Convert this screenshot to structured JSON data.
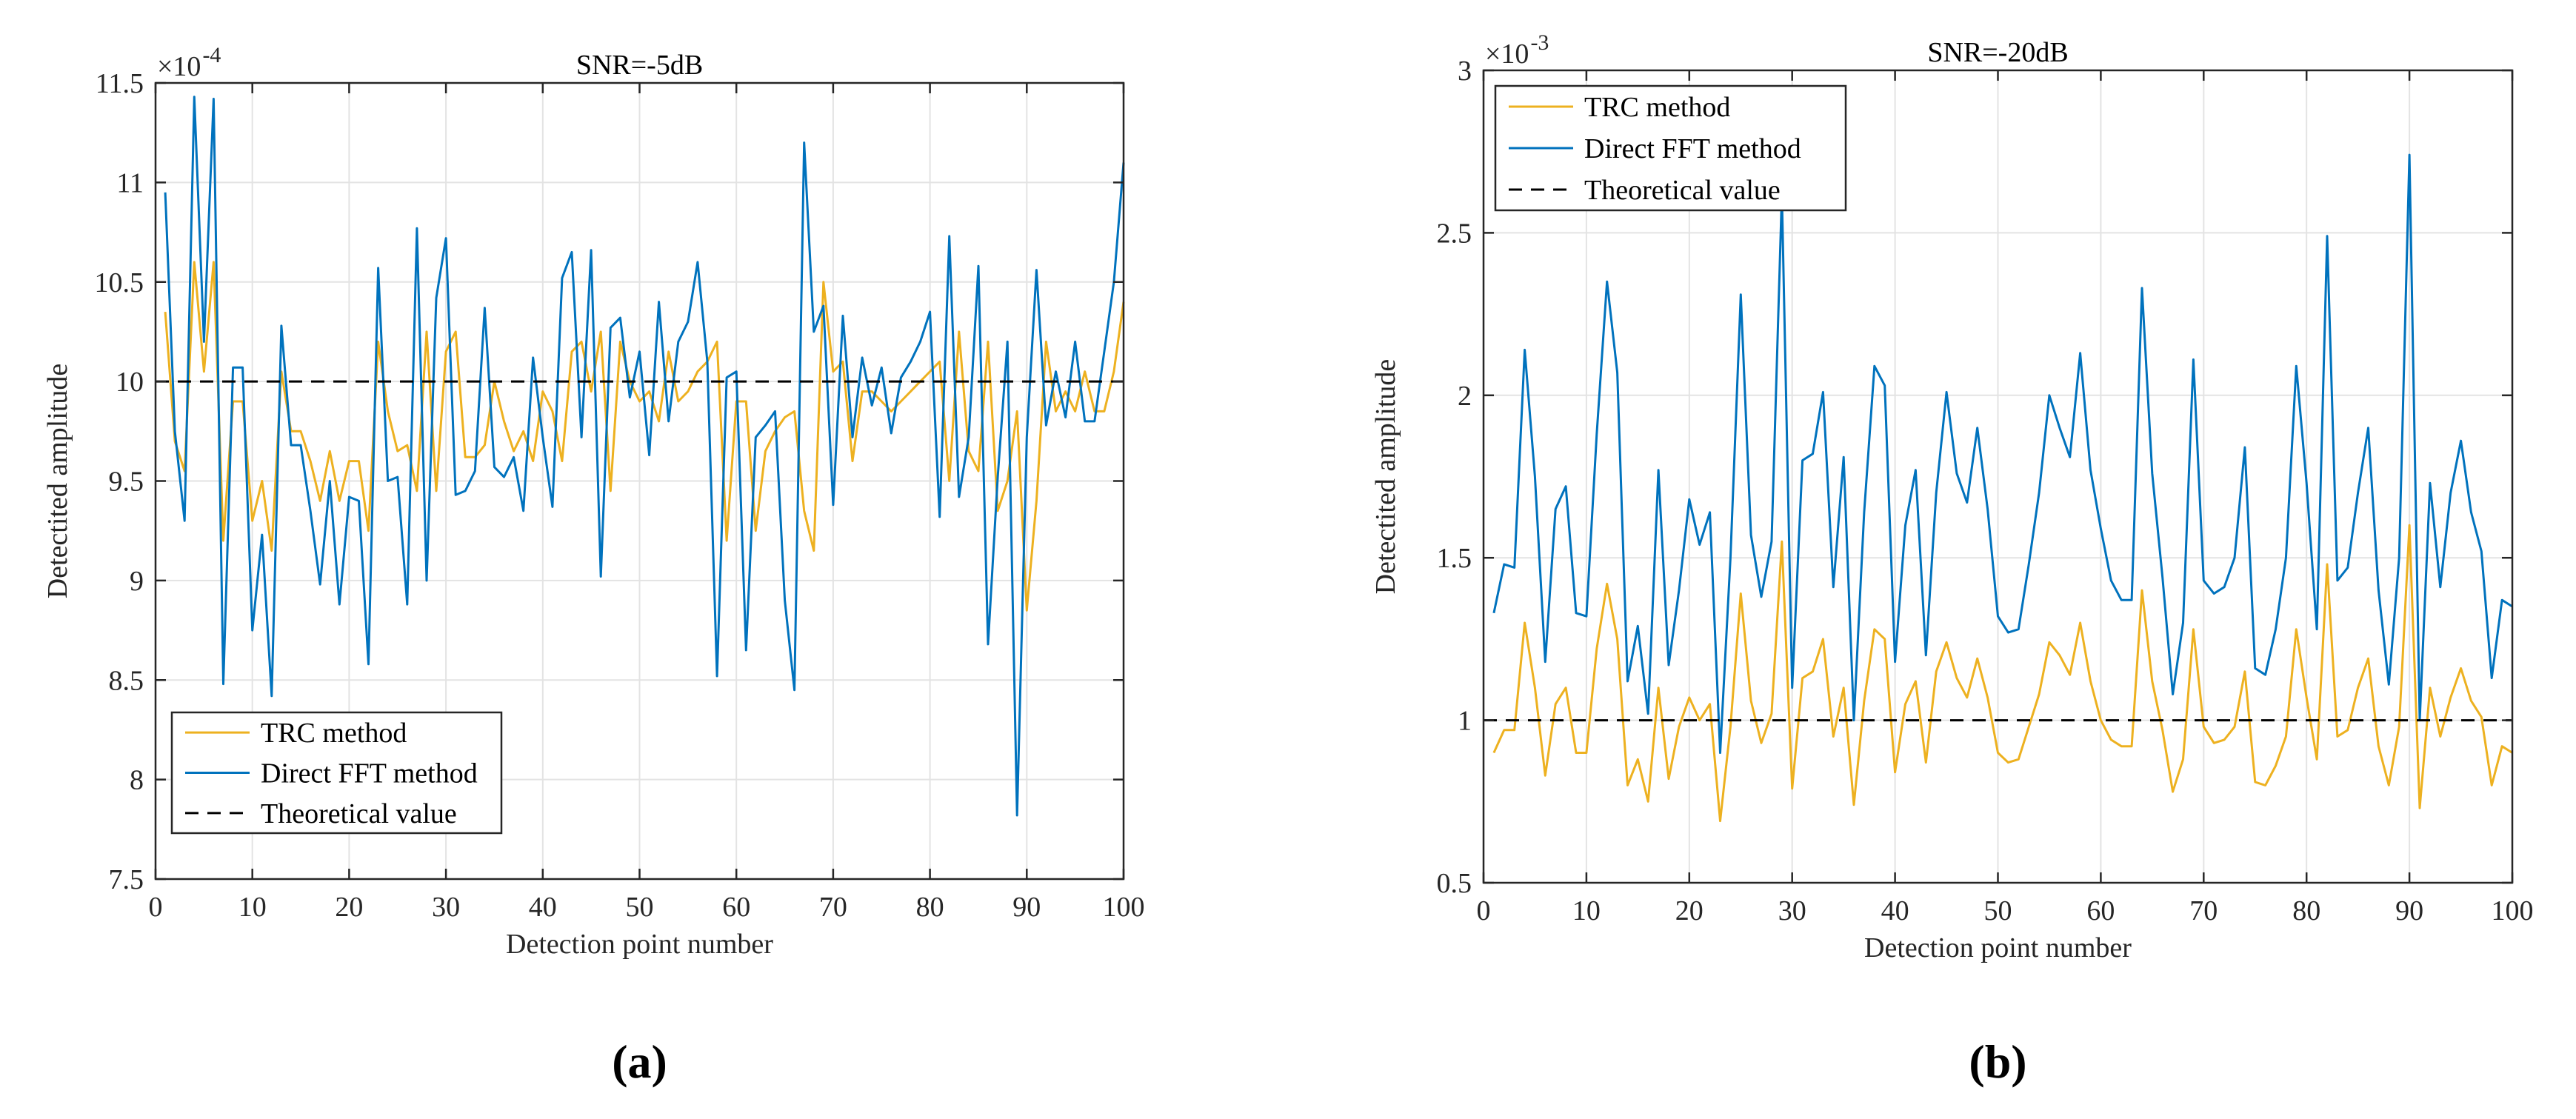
{
  "chart_data": [
    {
      "type": "line",
      "panel_label": "(a)",
      "title": "SNR=-5dB",
      "xlabel": "Detection point number",
      "ylabel": "Detectited amplitude",
      "scale_label": "×10",
      "scale_exponent": "-4",
      "xlim": [
        0,
        100
      ],
      "ylim": [
        7.5,
        11.5
      ],
      "xticks": [
        0,
        10,
        20,
        30,
        40,
        50,
        60,
        70,
        80,
        90,
        100
      ],
      "yticks": [
        7.5,
        8,
        8.5,
        9,
        9.5,
        10,
        10.5,
        11,
        11.5
      ],
      "grid": true,
      "legend_position": "bottom-left",
      "colors": {
        "trc": "#EDB120",
        "fft": "#0072BD",
        "theory": "#000000"
      },
      "x": [
        1,
        2,
        3,
        4,
        5,
        6,
        7,
        8,
        9,
        10,
        11,
        12,
        13,
        14,
        15,
        16,
        17,
        18,
        19,
        20,
        21,
        22,
        23,
        24,
        25,
        26,
        27,
        28,
        29,
        30,
        31,
        32,
        33,
        34,
        35,
        36,
        37,
        38,
        39,
        40,
        41,
        42,
        43,
        44,
        45,
        46,
        47,
        48,
        49,
        50,
        51,
        52,
        53,
        54,
        55,
        56,
        57,
        58,
        59,
        60,
        61,
        62,
        63,
        64,
        65,
        66,
        67,
        68,
        69,
        70,
        71,
        72,
        73,
        74,
        75,
        76,
        77,
        78,
        79,
        80,
        81,
        82,
        83,
        84,
        85,
        86,
        87,
        88,
        89,
        90,
        91,
        92,
        93,
        94,
        95,
        96,
        97,
        98,
        99,
        100
      ],
      "series": [
        {
          "name": "TRC method",
          "key": "trc",
          "values": [
            10.35,
            9.7,
            9.55,
            10.6,
            10.05,
            10.6,
            9.2,
            9.9,
            9.9,
            9.3,
            9.5,
            9.15,
            10.05,
            9.75,
            9.75,
            9.6,
            9.4,
            9.65,
            9.4,
            9.6,
            9.6,
            9.25,
            10.2,
            9.85,
            9.65,
            9.68,
            9.45,
            10.25,
            9.45,
            10.15,
            10.25,
            9.62,
            9.62,
            9.68,
            10.0,
            9.8,
            9.65,
            9.75,
            9.6,
            9.95,
            9.85,
            9.6,
            10.15,
            10.2,
            9.95,
            10.25,
            9.45,
            10.2,
            10.0,
            9.9,
            9.95,
            9.8,
            10.15,
            9.9,
            9.95,
            10.05,
            10.1,
            10.2,
            9.2,
            9.9,
            9.9,
            9.25,
            9.65,
            9.75,
            9.82,
            9.85,
            9.35,
            9.15,
            10.5,
            10.05,
            10.1,
            9.6,
            9.95,
            9.95,
            9.9,
            9.85,
            9.9,
            9.95,
            10.0,
            10.05,
            10.1,
            9.5,
            10.25,
            9.65,
            9.55,
            10.2,
            9.35,
            9.5,
            9.85,
            8.85,
            9.4,
            10.2,
            9.85,
            9.95,
            9.85,
            10.05,
            9.85,
            9.85,
            10.05,
            10.4
          ]
        },
        {
          "name": "Direct FFT method",
          "key": "fft",
          "values": [
            10.95,
            9.75,
            9.3,
            11.43,
            10.2,
            11.42,
            8.48,
            10.07,
            10.07,
            8.75,
            9.23,
            8.42,
            10.28,
            9.68,
            9.68,
            9.35,
            8.98,
            9.5,
            8.88,
            9.42,
            9.4,
            8.58,
            10.57,
            9.5,
            9.52,
            8.88,
            10.77,
            9.0,
            10.42,
            10.72,
            9.43,
            9.45,
            9.55,
            10.37,
            9.57,
            9.52,
            9.62,
            9.35,
            10.12,
            9.72,
            9.37,
            10.52,
            10.65,
            9.72,
            10.66,
            9.02,
            10.27,
            10.32,
            9.92,
            10.15,
            9.63,
            10.4,
            9.8,
            10.2,
            10.3,
            10.6,
            10.1,
            8.52,
            10.02,
            10.05,
            8.65,
            9.72,
            9.78,
            9.85,
            8.9,
            8.45,
            11.2,
            10.25,
            10.38,
            9.38,
            10.33,
            9.72,
            10.12,
            9.88,
            10.07,
            9.74,
            10.02,
            10.1,
            10.2,
            10.35,
            9.32,
            10.73,
            9.42,
            9.72,
            10.58,
            8.68,
            9.52,
            10.2,
            7.82,
            9.72,
            10.56,
            9.78,
            10.05,
            9.82,
            10.2,
            9.8,
            9.8,
            10.15,
            10.5,
            11.1
          ]
        },
        {
          "name": "Theoretical value",
          "key": "theory",
          "constant": 10
        }
      ]
    },
    {
      "type": "line",
      "panel_label": "(b)",
      "title": "SNR=-20dB",
      "xlabel": "Detection point number",
      "ylabel": "Detectited amplitude",
      "scale_label": "×10",
      "scale_exponent": "-3",
      "xlim": [
        0,
        100
      ],
      "ylim": [
        0.5,
        3
      ],
      "xticks": [
        0,
        10,
        20,
        30,
        40,
        50,
        60,
        70,
        80,
        90,
        100
      ],
      "yticks": [
        0.5,
        1,
        1.5,
        2,
        2.5,
        3
      ],
      "grid": true,
      "legend_position": "top-left",
      "colors": {
        "trc": "#EDB120",
        "fft": "#0072BD",
        "theory": "#000000"
      },
      "x": [
        1,
        2,
        3,
        4,
        5,
        6,
        7,
        8,
        9,
        10,
        11,
        12,
        13,
        14,
        15,
        16,
        17,
        18,
        19,
        20,
        21,
        22,
        23,
        24,
        25,
        26,
        27,
        28,
        29,
        30,
        31,
        32,
        33,
        34,
        35,
        36,
        37,
        38,
        39,
        40,
        41,
        42,
        43,
        44,
        45,
        46,
        47,
        48,
        49,
        50,
        51,
        52,
        53,
        54,
        55,
        56,
        57,
        58,
        59,
        60,
        61,
        62,
        63,
        64,
        65,
        66,
        67,
        68,
        69,
        70,
        71,
        72,
        73,
        74,
        75,
        76,
        77,
        78,
        79,
        80,
        81,
        82,
        83,
        84,
        85,
        86,
        87,
        88,
        89,
        90,
        91,
        92,
        93,
        94,
        95,
        96,
        97,
        98,
        99,
        100
      ],
      "series": [
        {
          "name": "TRC method",
          "key": "trc",
          "values": [
            0.9,
            0.97,
            0.97,
            1.3,
            1.1,
            0.83,
            1.05,
            1.1,
            0.9,
            0.9,
            1.22,
            1.42,
            1.25,
            0.8,
            0.88,
            0.75,
            1.1,
            0.82,
            0.98,
            1.07,
            1.0,
            1.05,
            0.69,
            0.98,
            1.39,
            1.06,
            0.93,
            1.02,
            1.55,
            0.79,
            1.13,
            1.15,
            1.25,
            0.95,
            1.1,
            0.74,
            1.06,
            1.28,
            1.25,
            0.84,
            1.05,
            1.12,
            0.87,
            1.15,
            1.24,
            1.13,
            1.07,
            1.19,
            1.07,
            0.9,
            0.87,
            0.88,
            0.98,
            1.08,
            1.24,
            1.2,
            1.14,
            1.3,
            1.12,
            1.0,
            0.94,
            0.92,
            0.92,
            1.4,
            1.12,
            0.97,
            0.78,
            0.88,
            1.28,
            0.98,
            0.93,
            0.94,
            0.98,
            1.15,
            0.81,
            0.8,
            0.86,
            0.95,
            1.28,
            1.07,
            0.88,
            1.48,
            0.95,
            0.97,
            1.1,
            1.19,
            0.92,
            0.8,
            0.98,
            1.6,
            0.73,
            1.1,
            0.95,
            1.07,
            1.16,
            1.06,
            1.01,
            0.8,
            0.92,
            0.9
          ]
        },
        {
          "name": "Direct FFT method",
          "key": "fft",
          "values": [
            1.33,
            1.48,
            1.47,
            2.14,
            1.75,
            1.18,
            1.65,
            1.72,
            1.33,
            1.32,
            1.88,
            2.35,
            2.07,
            1.12,
            1.29,
            1.02,
            1.77,
            1.17,
            1.4,
            1.68,
            1.54,
            1.64,
            0.9,
            1.5,
            2.31,
            1.57,
            1.38,
            1.55,
            2.62,
            1.1,
            1.8,
            1.82,
            2.01,
            1.41,
            1.81,
            1.0,
            1.64,
            2.09,
            2.03,
            1.18,
            1.6,
            1.77,
            1.2,
            1.7,
            2.01,
            1.76,
            1.67,
            1.9,
            1.65,
            1.32,
            1.27,
            1.28,
            1.48,
            1.7,
            2.0,
            1.9,
            1.81,
            2.13,
            1.77,
            1.59,
            1.43,
            1.37,
            1.37,
            2.33,
            1.76,
            1.44,
            1.08,
            1.3,
            2.11,
            1.43,
            1.39,
            1.41,
            1.5,
            1.84,
            1.16,
            1.14,
            1.28,
            1.5,
            2.09,
            1.73,
            1.28,
            2.49,
            1.43,
            1.47,
            1.7,
            1.9,
            1.4,
            1.11,
            1.5,
            2.74,
            1.0,
            1.73,
            1.41,
            1.7,
            1.86,
            1.64,
            1.52,
            1.13,
            1.37,
            1.35
          ]
        },
        {
          "name": "Theoretical value",
          "key": "theory",
          "constant": 1
        }
      ]
    }
  ]
}
